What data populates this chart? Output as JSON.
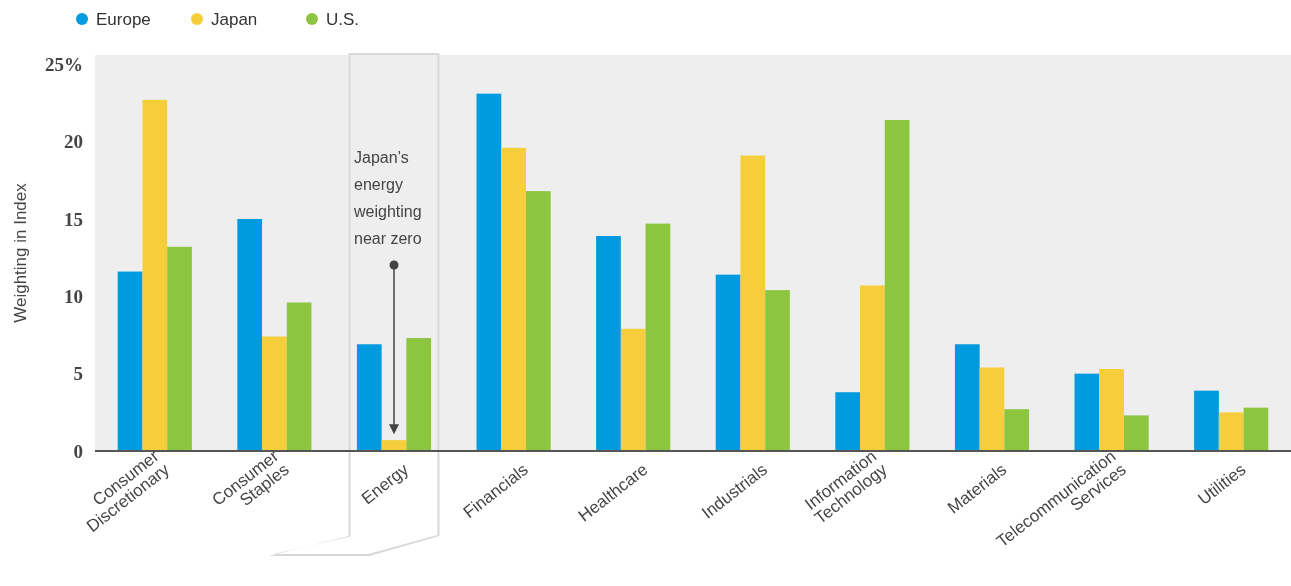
{
  "chart_data": {
    "type": "bar",
    "ylabel": "Weighting in Index",
    "categories": [
      "Consumer Discretionary",
      "Consumer Staples",
      "Energy",
      "Financials",
      "Healthcare",
      "Industrials",
      "Information Technology",
      "Materials",
      "Telecommunication Services",
      "Utilities"
    ],
    "series": [
      {
        "name": "Europe",
        "color": "#009ade",
        "values": [
          11.6,
          15.0,
          6.9,
          23.1,
          13.9,
          11.4,
          3.8,
          6.9,
          5.0,
          3.9
        ]
      },
      {
        "name": "Japan",
        "color": "#f6ce3c",
        "values": [
          22.7,
          7.4,
          0.7,
          19.6,
          7.9,
          19.1,
          10.7,
          5.4,
          5.3,
          2.5
        ]
      },
      {
        "name": "U.S.",
        "color": "#8cc540",
        "values": [
          13.2,
          9.6,
          7.3,
          16.8,
          14.7,
          10.4,
          21.4,
          2.7,
          2.3,
          2.8
        ]
      }
    ],
    "ylim": [
      0,
      25.6
    ],
    "yticks": [
      0,
      5,
      10,
      15,
      20,
      {
        "value": 25,
        "label": "25%"
      }
    ],
    "grid": false,
    "legend": "top left",
    "annotations": [
      "Japan’s energy weighting near zero"
    ]
  }
}
